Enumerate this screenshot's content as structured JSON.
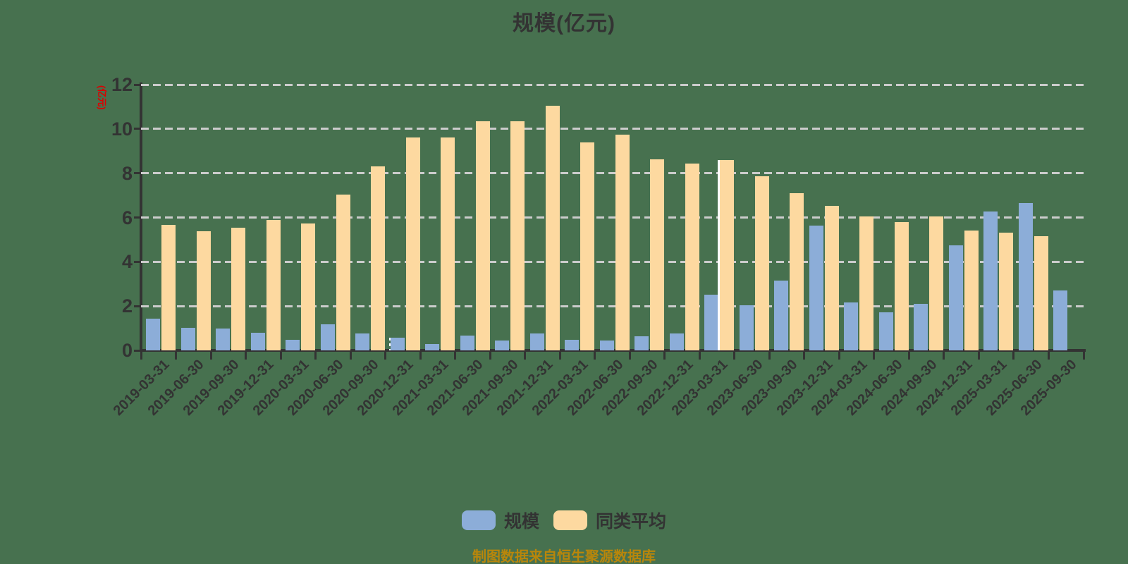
{
  "title": "规模(亿元)",
  "y_axis": {
    "unit_label": "(亿元)",
    "unit_label_color": "#DD0000",
    "tick_labels": [
      "0",
      "2",
      "4",
      "6",
      "8",
      "10",
      "12"
    ]
  },
  "footer": "制图数据来自恒生聚源数据库",
  "colors": {
    "background": "#47714F",
    "axis": "#333333",
    "gridline": "#CCCCCC",
    "text": "#333333",
    "series_scale": "#8CADD8",
    "series_average": "#FDD9A0",
    "footer_text": "#B8860B"
  },
  "chart_data": {
    "type": "bar",
    "title": "规模(亿元)",
    "xlabel": "",
    "ylabel": "(亿元)",
    "ylim": [
      0,
      12
    ],
    "y_ticks": [
      0,
      2,
      4,
      6,
      8,
      10,
      12
    ],
    "grid": "horizontal dashed",
    "legend_position": "bottom",
    "categories": [
      "2019-03-31",
      "2019-06-30",
      "2019-09-30",
      "2019-12-31",
      "2020-03-31",
      "2020-06-30",
      "2020-09-30",
      "2020-12-31",
      "2021-03-31",
      "2021-06-30",
      "2021-09-30",
      "2021-12-31",
      "2022-03-31",
      "2022-06-30",
      "2022-09-30",
      "2022-12-31",
      "2023-03-31",
      "2023-06-30",
      "2023-09-30",
      "2023-12-31",
      "2024-03-31",
      "2024-06-30",
      "2024-09-30",
      "2024-12-31",
      "2025-03-31",
      "2025-06-30",
      "2025-09-30"
    ],
    "series": [
      {
        "name": "规模",
        "color": "#8CADD8",
        "values": [
          1.43,
          1.03,
          0.99,
          0.81,
          0.48,
          1.17,
          0.75,
          0.56,
          0.29,
          0.68,
          0.44,
          0.76,
          0.48,
          0.43,
          0.64,
          0.77,
          2.5,
          2.03,
          3.15,
          5.62,
          2.18,
          1.73,
          2.1,
          4.74,
          6.28,
          6.66,
          2.7
        ]
      },
      {
        "name": "同类平均",
        "color": "#FDD9A0",
        "values": [
          5.65,
          5.37,
          5.54,
          5.89,
          5.73,
          7.03,
          8.3,
          9.62,
          9.62,
          10.33,
          10.36,
          11.05,
          9.39,
          9.73,
          8.64,
          8.43,
          8.61,
          7.85,
          7.11,
          6.52,
          6.06,
          5.78,
          6.05,
          5.41,
          5.3,
          5.15,
          null
        ]
      }
    ],
    "highlight_bars": [
      {
        "category": "2020-12-31",
        "series": "规模",
        "style": "dotted-white-left"
      },
      {
        "category": "2023-03-31",
        "series": "同类平均",
        "style": "solid-white-left"
      }
    ]
  }
}
